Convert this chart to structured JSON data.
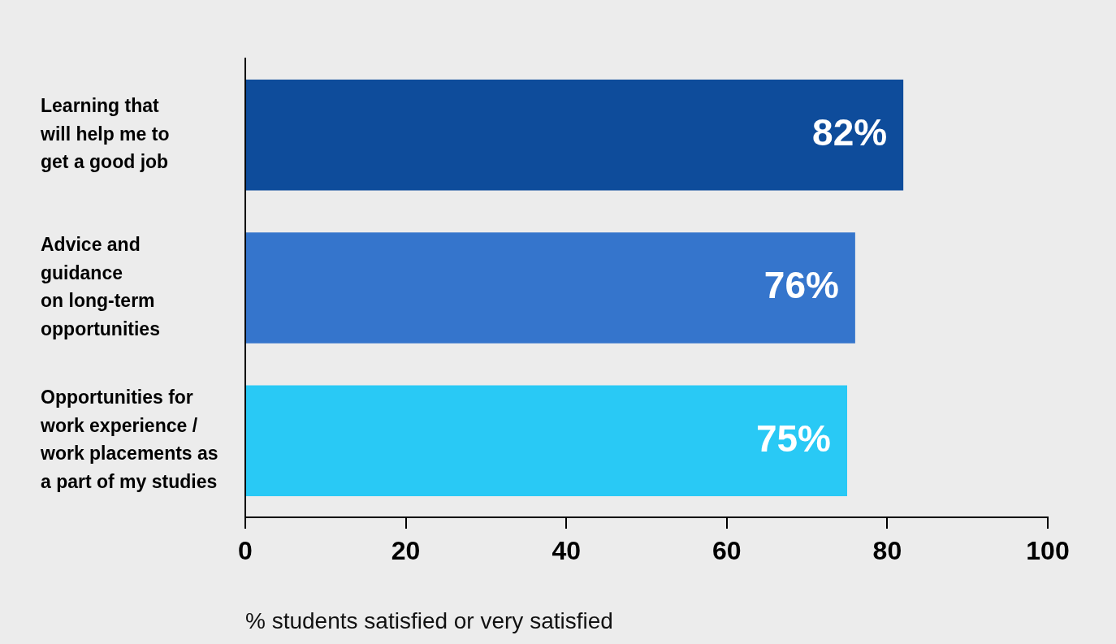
{
  "chart_data": {
    "type": "bar",
    "orientation": "horizontal",
    "categories": [
      "Learning that\nwill help me to\nget a good job",
      "Advice and\nguidance\non long-term\nopportunities",
      "Opportunities for\nwork experience /\nwork placements as\na part of my studies"
    ],
    "values": [
      82,
      76,
      75
    ],
    "colors": [
      "#0e4c9b",
      "#3575cc",
      "#29c9f5"
    ],
    "value_labels": [
      "82%",
      "76%",
      "75%"
    ],
    "xlabel": "% students satisfied or very satisfied",
    "xlim": [
      0,
      100
    ],
    "xticks": [
      0,
      20,
      40,
      60,
      80,
      100
    ],
    "grid": false,
    "legend": false
  }
}
